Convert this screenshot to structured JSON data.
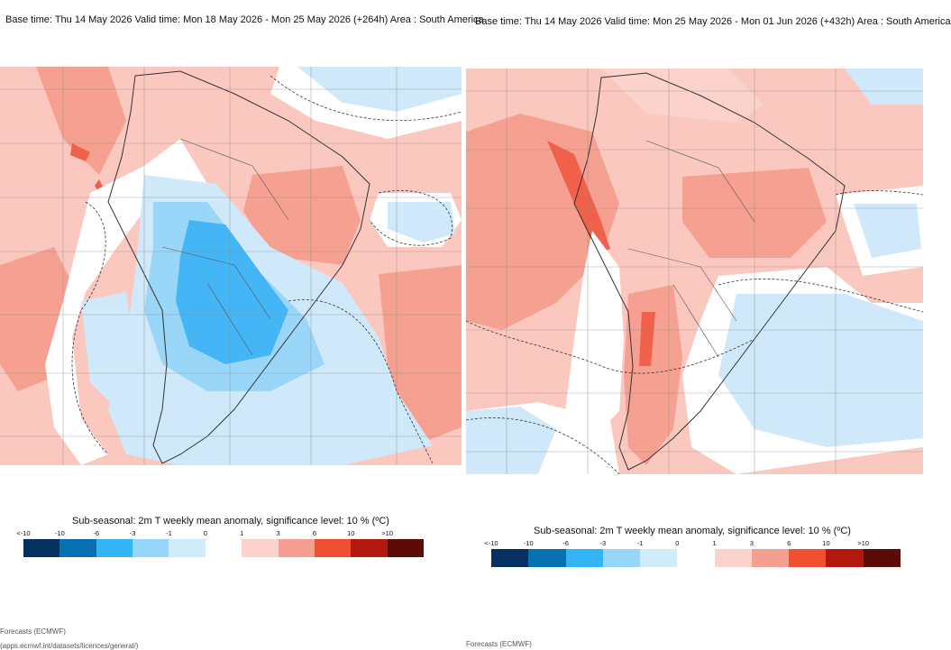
{
  "left": {
    "header": "Base time: Thu 14 May 2026 Valid time: Mon 18 May 2026 - Mon 25 May 2026 (+264h) Area : South America",
    "colorbar_title": "Sub-seasonal: 2m T weekly mean anomaly, significance level: 10 % (ºC)",
    "footer1": "Forecasts (ECMWF)",
    "footer2": "(apps.ecmwf.int/datasets/licences/general/)"
  },
  "right": {
    "header": "Base time: Thu 14 May 2026 Valid time: Mon 25 May 2026 - Mon 01 Jun 2026 (+432h) Area : South America",
    "colorbar_title": "Sub-seasonal: 2m T weekly mean anomaly, significance level: 10 % (ºC)",
    "footer1": "Forecasts (ECMWF)"
  },
  "colorbar": {
    "labels": [
      "<-10",
      "-10",
      "-6",
      "-3",
      "-1",
      "0",
      "1",
      "3",
      "6",
      "10",
      ">10"
    ],
    "colors": [
      "#053061",
      "#0571b0",
      "#32b4f5",
      "#96d6f9",
      "#d0ecfb",
      "#ffffff",
      "#fbd2cc",
      "#f59f91",
      "#f0502f",
      "#b2180e",
      "#5e0a06"
    ]
  },
  "map_colors": {
    "ocean_warm": "#fbc8c0",
    "warm": "#f5a090",
    "warm_strong": "#f0604a",
    "cold_light": "#cfe9fa",
    "cold": "#9ad6f8",
    "cold_strong": "#44b6f5",
    "neutral": "#ffffff"
  }
}
